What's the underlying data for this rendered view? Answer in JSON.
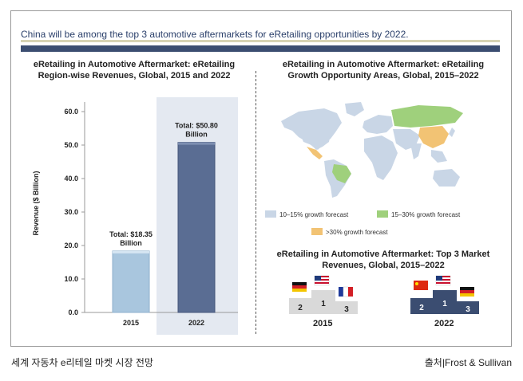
{
  "headline": "China will be among the top 3 automotive aftermarkets for eRetailing opportunities by 2022.",
  "left_chart": {
    "title_line1": "eRetailing in Automotive Aftermarket: eRetailing",
    "title_line2": "Region-wise Revenues, Global, 2015 and 2022"
  },
  "chart_data": {
    "type": "bar",
    "categories": [
      "2015",
      "2022"
    ],
    "values": [
      18.35,
      50.8
    ],
    "ylabel": "Revenue ($ Billion)",
    "ylim": [
      0,
      60
    ],
    "yticks": [
      "0.0",
      "10.0",
      "20.0",
      "30.0",
      "40.0",
      "50.0",
      "60.0"
    ],
    "data_labels": [
      [
        "Total: $18.35",
        "Billion"
      ],
      [
        "Total: $50.80",
        "Billion"
      ]
    ],
    "colors": [
      "#a9c6de",
      "#5a6d93"
    ],
    "highlight_background": "#e4e9f1"
  },
  "map": {
    "title_line1": "eRetailing in Automotive Aftermarket: eRetailing",
    "title_line2": "Growth Opportunity  Areas, Global, 2015–2022",
    "legend": [
      {
        "label": "10–15% growth forecast",
        "color": "#c9d6e6"
      },
      {
        "label": "15–30% growth forecast",
        "color": "#9fd07c"
      },
      {
        "label": ">30% growth forecast",
        "color": "#f2c374"
      }
    ]
  },
  "top3": {
    "title_line1": "eRetailing in Automotive Aftermarket: Top 3 Market",
    "title_line2": "Revenues, Global, 2015–2022",
    "podiums": [
      {
        "year": "2015",
        "first": "1",
        "second": "2",
        "third": "3",
        "flags": [
          "germany-flag-icon",
          "usa-flag-icon",
          "france-flag-icon"
        ],
        "color": "#d9d9d9"
      },
      {
        "year": "2022",
        "first": "1",
        "second": "2",
        "third": "3",
        "flags": [
          "china-flag-icon",
          "usa-flag-icon",
          "germany-flag-icon"
        ],
        "color": "#3b4d71"
      }
    ]
  },
  "caption_left": "세계 자동차 e리테일 마켓 시장 전망",
  "caption_right": "출처|Frost & Sullivan"
}
